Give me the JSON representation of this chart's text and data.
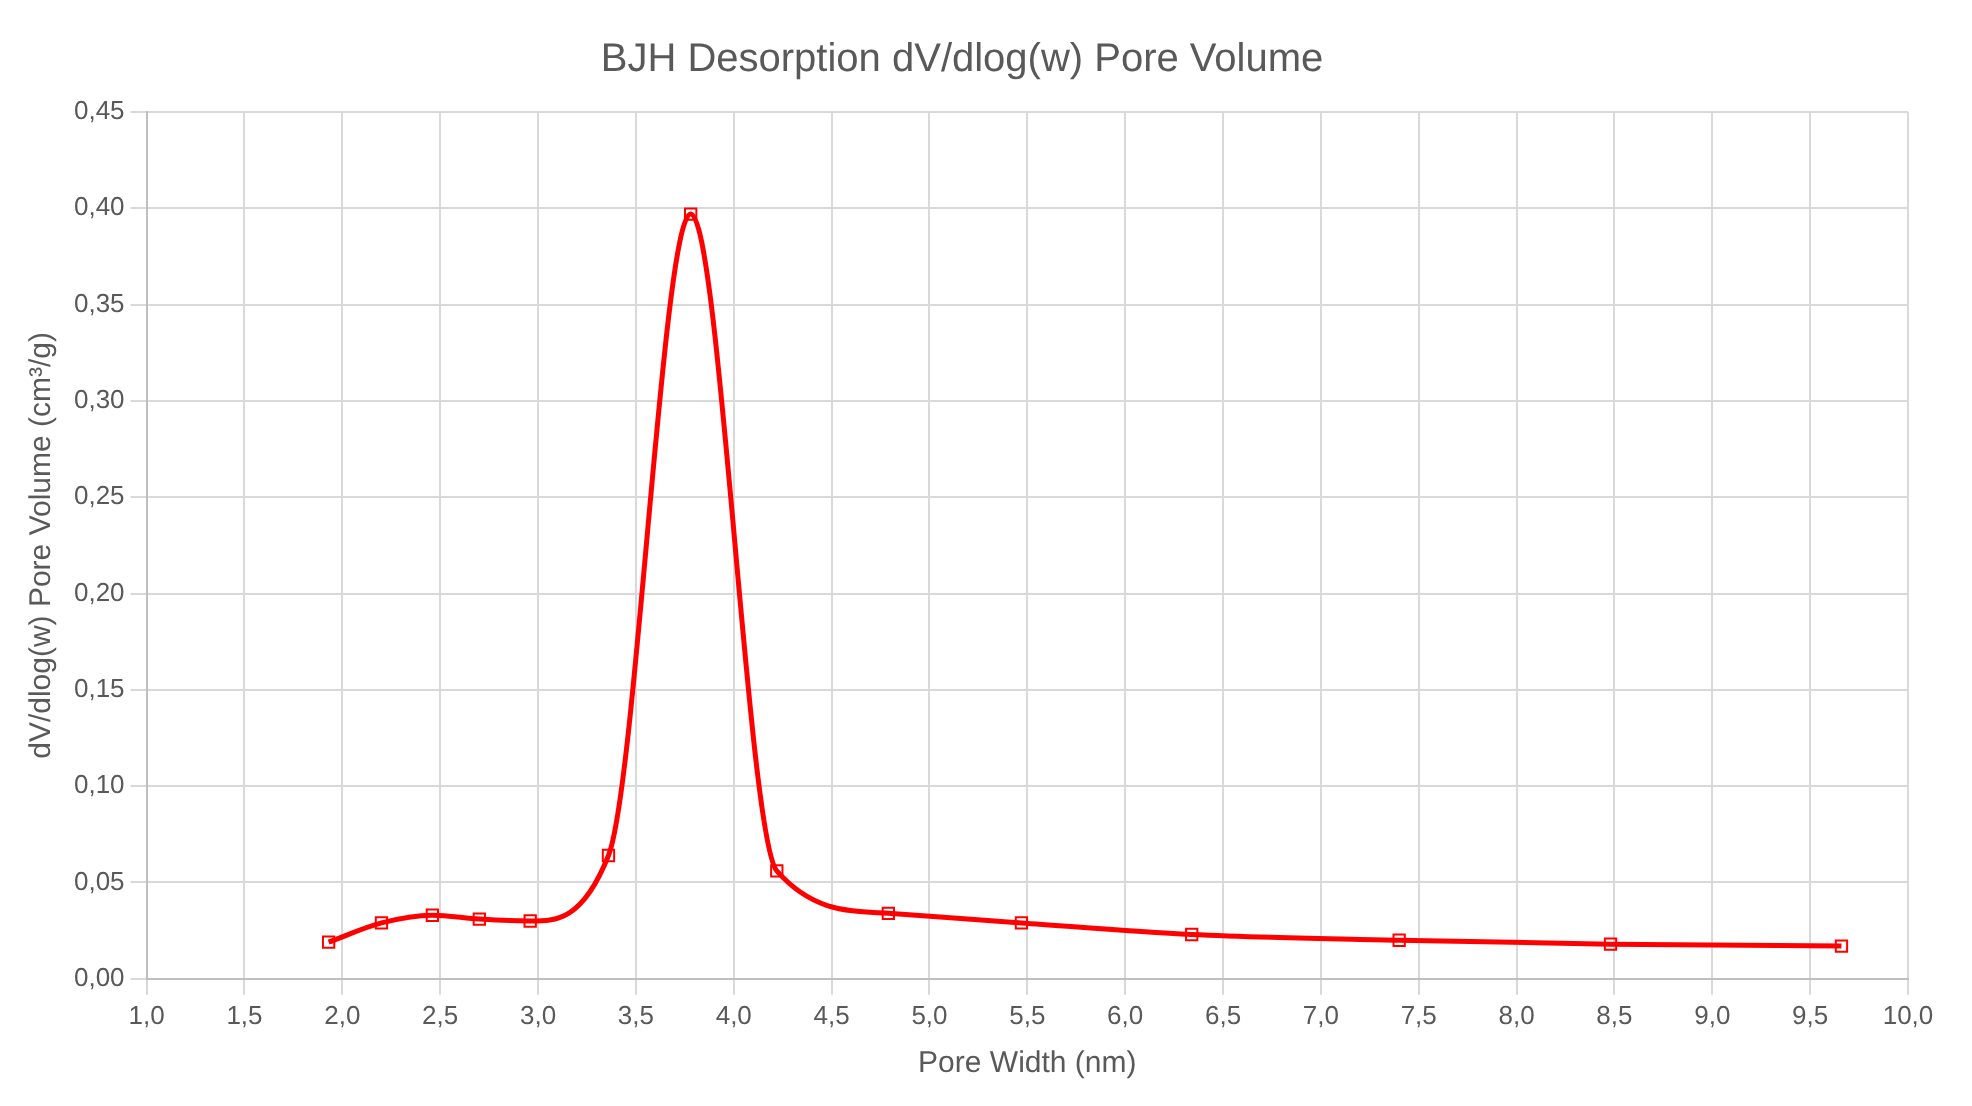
{
  "chart_data": {
    "type": "line",
    "title": "BJH Desorption dV/dlog(w) Pore Volume",
    "xlabel": "Pore Width (nm)",
    "ylabel": "dV/dlog(w) Pore Volume (cm³/g)",
    "series": [
      {
        "color": "#ff0000",
        "x": [
          1.93,
          2.2,
          2.46,
          2.7,
          2.96,
          3.36,
          3.78,
          4.22,
          4.79,
          5.47,
          6.34,
          7.4,
          8.48,
          9.66
        ],
        "values": [
          0.019,
          0.029,
          0.033,
          0.031,
          0.03,
          0.064,
          0.397,
          0.056,
          0.034,
          0.029,
          0.023,
          0.02,
          0.018,
          0.017
        ]
      }
    ],
    "xlim": [
      1.0,
      10.0
    ],
    "xticks": [
      {
        "value": 1.0,
        "label": "1,0"
      },
      {
        "value": 1.5,
        "label": "1,5"
      },
      {
        "value": 2.0,
        "label": "2,0"
      },
      {
        "value": 2.5,
        "label": "2,5"
      },
      {
        "value": 3.0,
        "label": "3,0"
      },
      {
        "value": 3.5,
        "label": "3,5"
      },
      {
        "value": 4.0,
        "label": "4,0"
      },
      {
        "value": 4.5,
        "label": "4,5"
      },
      {
        "value": 5.0,
        "label": "5,0"
      },
      {
        "value": 5.5,
        "label": "5,5"
      },
      {
        "value": 6.0,
        "label": "6,0"
      },
      {
        "value": 6.5,
        "label": "6,5"
      },
      {
        "value": 7.0,
        "label": "7,0"
      },
      {
        "value": 7.5,
        "label": "7,5"
      },
      {
        "value": 8.0,
        "label": "8,0"
      },
      {
        "value": 8.5,
        "label": "8,5"
      },
      {
        "value": 9.0,
        "label": "9,0"
      },
      {
        "value": 9.5,
        "label": "9,5"
      },
      {
        "value": 10.0,
        "label": "10,0"
      }
    ],
    "ylim": [
      0,
      0.45
    ],
    "yticks": [
      {
        "value": 0,
        "label": "0,00"
      },
      {
        "value": 0.05,
        "label": "0,05"
      },
      {
        "value": 0.1,
        "label": "0,10"
      },
      {
        "value": 0.15,
        "label": "0,15"
      },
      {
        "value": 0.2,
        "label": "0,20"
      },
      {
        "value": 0.25,
        "label": "0,25"
      },
      {
        "value": 0.3,
        "label": "0,30"
      },
      {
        "value": 0.35,
        "label": "0,35"
      },
      {
        "value": 0.4,
        "label": "0,40"
      },
      {
        "value": 0.45,
        "label": "0,45"
      }
    ],
    "grid": true,
    "legend": false,
    "marker": "square",
    "line_style": "solid"
  }
}
